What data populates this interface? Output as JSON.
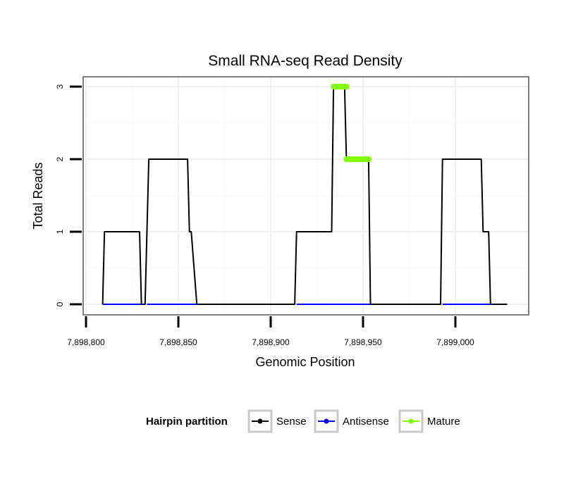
{
  "chart_data": {
    "type": "line",
    "title": "Small RNA-seq Read Density",
    "xlabel": "Genomic Position",
    "ylabel": "Total Reads",
    "xlim": [
      7898800,
      7899030
    ],
    "ylim": [
      0,
      3
    ],
    "xticks": [
      7898800,
      7898850,
      7898900,
      7898950,
      7899000
    ],
    "xtick_labels": [
      "7,898,800",
      "7,898,850",
      "7,898,900",
      "7,898,950",
      "7,899,000"
    ],
    "yticks": [
      0,
      1,
      2,
      3
    ],
    "ytick_labels": [
      "0",
      "1",
      "2",
      "3"
    ],
    "grid": true,
    "legend": {
      "title": "Hairpin partition",
      "position": "bottom",
      "entries": [
        {
          "label": "Sense",
          "color": "#000000"
        },
        {
          "label": "Antisense",
          "color": "#0000ff"
        },
        {
          "label": "Mature",
          "color": "#7fff00"
        }
      ]
    },
    "series": [
      {
        "name": "Sense",
        "color": "#000000",
        "x": [
          7898809,
          7898810,
          7898829,
          7898830,
          7898832,
          7898834,
          7898855,
          7898856,
          7898857,
          7898860,
          7898913,
          7898914,
          7898933,
          7898934,
          7898940,
          7898941,
          7898953,
          7898954,
          7898992,
          7898993,
          7899014,
          7899015,
          7899018,
          7899019,
          7899028
        ],
        "y": [
          0,
          1,
          1,
          0,
          0,
          2,
          2,
          1,
          1,
          0,
          0,
          1,
          1,
          3,
          3,
          2,
          2,
          0,
          0,
          2,
          2,
          1,
          1,
          0,
          0
        ]
      },
      {
        "name": "Antisense",
        "color": "#0000ff",
        "segments": [
          {
            "x": [
              7898809,
              7898830
            ],
            "y": [
              0,
              0
            ]
          },
          {
            "x": [
              7898833,
              7898860
            ],
            "y": [
              0,
              0
            ]
          },
          {
            "x": [
              7898914,
              7898954
            ],
            "y": [
              0,
              0
            ]
          },
          {
            "x": [
              7898993,
              7899019
            ],
            "y": [
              0,
              0
            ]
          }
        ]
      },
      {
        "name": "Mature",
        "color": "#7fff00",
        "segments": [
          {
            "x": [
              7898934,
              7898941
            ],
            "y": [
              3,
              3
            ]
          },
          {
            "x": [
              7898941,
              7898953
            ],
            "y": [
              2,
              2
            ]
          }
        ]
      }
    ]
  }
}
